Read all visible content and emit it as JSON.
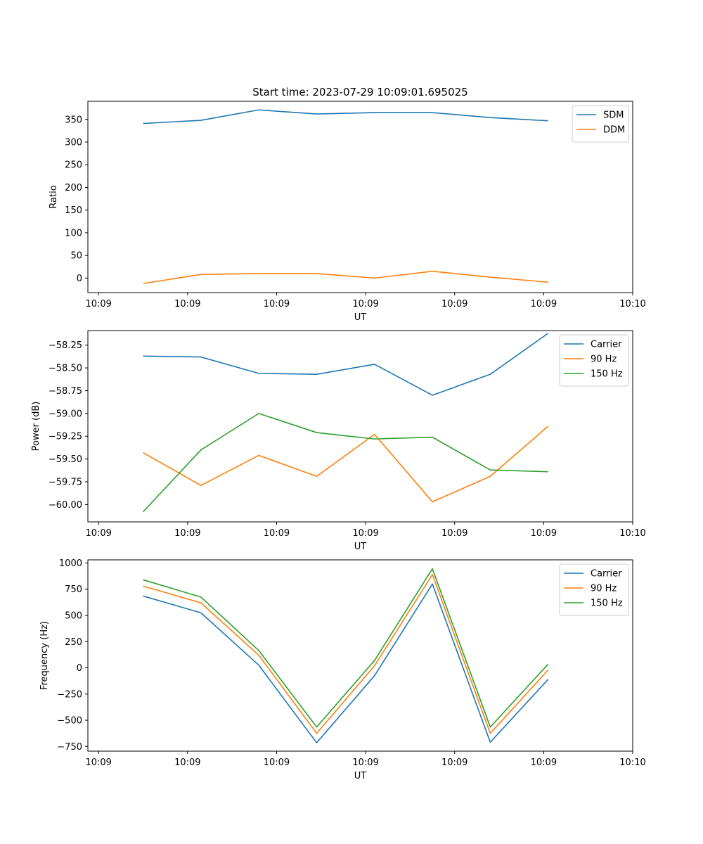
{
  "chart_data": [
    {
      "type": "line",
      "title": "Start time: 2023-07-29 10:09:01.695025",
      "xlabel": "UT",
      "ylabel": "Ratio",
      "x": [
        0.5,
        1.15,
        1.8,
        2.45,
        3.1,
        3.75,
        4.4,
        5.05
      ],
      "xlim": [
        -0.12,
        6.0
      ],
      "xticks": [
        0,
        1,
        2,
        3,
        4,
        5,
        6
      ],
      "xtick_labels": [
        "10:09",
        "10:09",
        "10:09",
        "10:09",
        "10:09",
        "10:09",
        "10:10"
      ],
      "ylim": [
        -32,
        390
      ],
      "yticks": [
        0,
        50,
        100,
        150,
        200,
        250,
        300,
        350
      ],
      "ytick_labels": [
        "0",
        "50",
        "100",
        "150",
        "200",
        "250",
        "300",
        "350"
      ],
      "legend_position": "top-right",
      "series": [
        {
          "name": "SDM",
          "color": "#1f77b4",
          "values": [
            341,
            348,
            371,
            362,
            365,
            365,
            354,
            347
          ]
        },
        {
          "name": "DDM",
          "color": "#ff7f0e",
          "values": [
            -12,
            8,
            10,
            10,
            0,
            15,
            2,
            -9
          ]
        }
      ]
    },
    {
      "type": "line",
      "title": "",
      "xlabel": "UT",
      "ylabel": "Power (dB)",
      "x": [
        0.5,
        1.15,
        1.8,
        2.45,
        3.1,
        3.75,
        4.4,
        5.05
      ],
      "xlim": [
        -0.12,
        6.0
      ],
      "xticks": [
        0,
        1,
        2,
        3,
        4,
        5,
        6
      ],
      "xtick_labels": [
        "10:09",
        "10:09",
        "10:09",
        "10:09",
        "10:09",
        "10:09",
        "10:10"
      ],
      "ylim": [
        -60.19,
        -58.09
      ],
      "yticks": [
        -60.0,
        -59.75,
        -59.5,
        -59.25,
        -59.0,
        -58.75,
        -58.5,
        -58.25
      ],
      "ytick_labels": [
        "−60.00",
        "−59.75",
        "−59.50",
        "−59.25",
        "−59.00",
        "−58.75",
        "−58.50",
        "−58.25"
      ],
      "legend_position": "top-right",
      "series": [
        {
          "name": "Carrier",
          "color": "#1f77b4",
          "values": [
            -58.37,
            -58.38,
            -58.56,
            -58.57,
            -58.46,
            -58.8,
            -58.57,
            -58.12
          ]
        },
        {
          "name": "90 Hz",
          "color": "#ff7f0e",
          "values": [
            -59.43,
            -59.79,
            -59.46,
            -59.69,
            -59.23,
            -59.97,
            -59.69,
            -59.14
          ]
        },
        {
          "name": "150 Hz",
          "color": "#2ca02c",
          "values": [
            -60.08,
            -59.4,
            -59.0,
            -59.21,
            -59.28,
            -59.26,
            -59.62,
            -59.64
          ]
        }
      ]
    },
    {
      "type": "line",
      "title": "",
      "xlabel": "UT",
      "ylabel": "Frequency (Hz)",
      "x": [
        0.5,
        1.15,
        1.8,
        2.45,
        3.1,
        3.75,
        4.4,
        5.05
      ],
      "xlim": [
        -0.12,
        6.0
      ],
      "xticks": [
        0,
        1,
        2,
        3,
        4,
        5,
        6
      ],
      "xtick_labels": [
        "10:09",
        "10:09",
        "10:09",
        "10:09",
        "10:09",
        "10:09",
        "10:10"
      ],
      "ylim": [
        -795,
        1030
      ],
      "yticks": [
        -750,
        -500,
        -250,
        0,
        250,
        500,
        750,
        1000
      ],
      "ytick_labels": [
        "−750",
        "−500",
        "−250",
        "0",
        "250",
        "500",
        "750",
        "1000"
      ],
      "legend_position": "top-right",
      "series": [
        {
          "name": "Carrier",
          "color": "#1f77b4",
          "values": [
            685,
            525,
            25,
            -715,
            -75,
            800,
            -710,
            -110
          ]
        },
        {
          "name": "90 Hz",
          "color": "#ff7f0e",
          "values": [
            780,
            620,
            120,
            -625,
            20,
            890,
            -625,
            -20
          ]
        },
        {
          "name": "150 Hz",
          "color": "#2ca02c",
          "values": [
            840,
            675,
            165,
            -565,
            70,
            945,
            -565,
            35
          ]
        }
      ]
    }
  ]
}
